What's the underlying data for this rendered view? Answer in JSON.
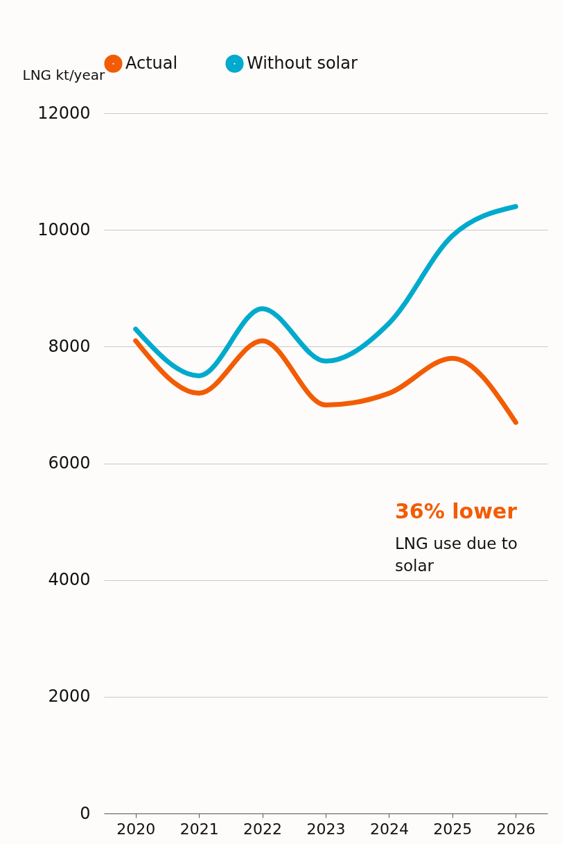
{
  "chart_data": {
    "type": "line",
    "ylabel": "LNG kt/year",
    "categories": [
      "2020",
      "2021",
      "2022",
      "2023",
      "2024",
      "2025",
      "2026"
    ],
    "series": [
      {
        "name": "Actual",
        "color": "#f25c05",
        "values": [
          8100,
          7200,
          8100,
          7000,
          7200,
          7800,
          6700
        ]
      },
      {
        "name": "Without solar",
        "color": "#00aacc",
        "values": [
          8300,
          7500,
          8650,
          7750,
          8400,
          9900,
          10400
        ]
      }
    ],
    "ylim": [
      0,
      12000
    ],
    "yticks": [
      0,
      2000,
      4000,
      6000,
      8000,
      10000,
      12000
    ],
    "grid": "y",
    "legend": "top",
    "marker": "none",
    "line_style": "solid",
    "annotations": [
      "36% lower",
      "LNG use due to solar"
    ]
  }
}
